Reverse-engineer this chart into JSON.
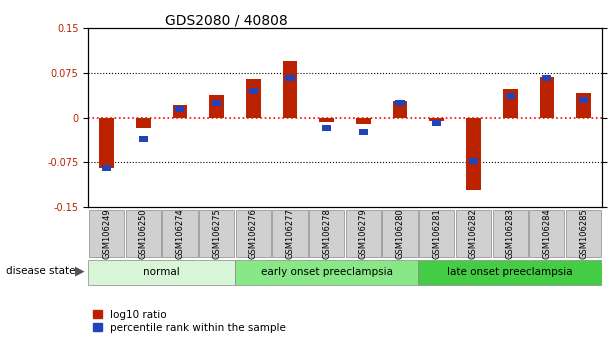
{
  "title": "GDS2080 / 40808",
  "samples": [
    "GSM106249",
    "GSM106250",
    "GSM106274",
    "GSM106275",
    "GSM106276",
    "GSM106277",
    "GSM106278",
    "GSM106279",
    "GSM106280",
    "GSM106281",
    "GSM106282",
    "GSM106283",
    "GSM106284",
    "GSM106285"
  ],
  "log10_ratio": [
    -0.085,
    -0.018,
    0.022,
    0.038,
    0.065,
    0.095,
    -0.007,
    -0.01,
    0.028,
    -0.005,
    -0.122,
    0.048,
    0.068,
    0.042
  ],
  "percentile_rank": [
    22,
    38,
    55,
    58,
    65,
    72,
    44,
    42,
    58,
    47,
    26,
    62,
    72,
    60
  ],
  "groups": [
    {
      "label": "normal",
      "start": 0,
      "end": 4,
      "color": "#d8f5d8"
    },
    {
      "label": "early onset preeclampsia",
      "start": 4,
      "end": 9,
      "color": "#88e888"
    },
    {
      "label": "late onset preeclampsia",
      "start": 9,
      "end": 14,
      "color": "#44cc44"
    }
  ],
  "ylim_left": [
    -0.15,
    0.15
  ],
  "ylim_right": [
    0,
    100
  ],
  "yticks_left": [
    -0.15,
    -0.075,
    0,
    0.075,
    0.15
  ],
  "yticks_right": [
    0,
    25,
    50,
    75,
    100
  ],
  "bar_width": 0.4,
  "blue_bar_width": 0.25,
  "blue_bar_height": 0.01,
  "red_color": "#bb2200",
  "blue_color": "#2244bb",
  "background_color": "#ffffff",
  "plot_bg": "#ffffff",
  "gray_box_color": "#d0d0d0",
  "legend_items": [
    "log10 ratio",
    "percentile rank within the sample"
  ],
  "disease_state_label": "disease state",
  "title_fontsize": 10,
  "tick_fontsize": 7,
  "label_fontsize": 8
}
